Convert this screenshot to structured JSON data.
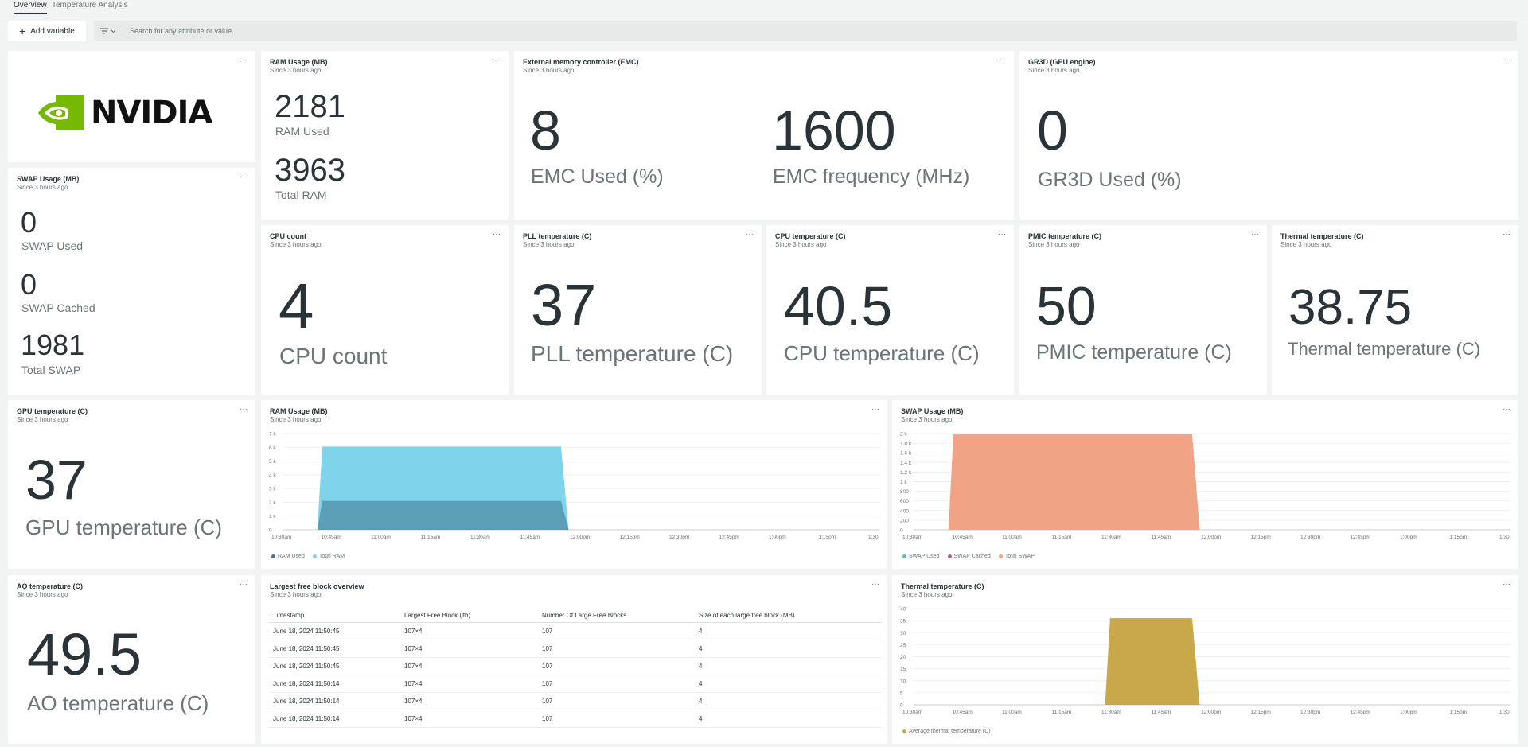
{
  "tabs": [
    {
      "label": "Overview",
      "active": true
    },
    {
      "label": "Temperature Analysis",
      "active": false
    }
  ],
  "toolbar": {
    "add_variable_label": "Add variable",
    "search_placeholder": "Search for any attribute or value."
  },
  "common": {
    "since": "Since 3 hours ago",
    "menu": "···"
  },
  "logo": {
    "text": "NVIDIA",
    "icon": "nvidia-eye-logo",
    "color": "#76b900"
  },
  "ram_usage": {
    "title": "RAM Usage (MB)",
    "used_value": "2181",
    "used_label": "RAM Used",
    "total_value": "3963",
    "total_label": "Total RAM"
  },
  "emc": {
    "title": "External memory controller (EMC)",
    "used_value": "8",
    "used_label": "EMC Used (%)",
    "freq_value": "1600",
    "freq_label": "EMC frequency (MHz)"
  },
  "gr3d": {
    "title": "GR3D (GPU engine)",
    "value": "0",
    "label": "GR3D Used (%)"
  },
  "swap_usage": {
    "title": "SWAP Usage (MB)",
    "used_value": "0",
    "used_label": "SWAP Used",
    "cached_value": "0",
    "cached_label": "SWAP Cached",
    "total_value": "1981",
    "total_label": "Total SWAP"
  },
  "cpu_count": {
    "title": "CPU count",
    "value": "4",
    "label": "CPU count"
  },
  "pll_temp": {
    "title": "PLL temperature (C)",
    "value": "37",
    "label": "PLL temperature (C)"
  },
  "cpu_temp": {
    "title": "CPU temperature (C)",
    "value": "40.5",
    "label": "CPU temperature (C)"
  },
  "pmic_temp": {
    "title": "PMIC temperature (C)",
    "value": "50",
    "label": "PMIC temperature (C)"
  },
  "thermal_temp": {
    "title": "Thermal temperature (C)",
    "value": "38.75",
    "label": "Thermal temperature (C)"
  },
  "gpu_temp": {
    "title": "GPU temperature (C)",
    "value": "37",
    "label": "GPU temperature (C)"
  },
  "ao_temp": {
    "title": "AO temperature (C)",
    "value": "49.5",
    "label": "AO temperature (C)"
  },
  "free_block": {
    "title": "Largest free block overview",
    "columns": [
      "Timestamp",
      "Largest Free Block (lfb)",
      "Number Of Large Free Blocks",
      "Size of each large free block (MB)"
    ],
    "rows": [
      [
        "June 18, 2024 11:50:45",
        "107×4",
        "107",
        "4"
      ],
      [
        "June 18, 2024 11:50:45",
        "107×4",
        "107",
        "4"
      ],
      [
        "June 18, 2024 11:50:45",
        "107×4",
        "107",
        "4"
      ],
      [
        "June 18, 2024 11:50:14",
        "107×4",
        "107",
        "4"
      ],
      [
        "June 18, 2024 11:50:14",
        "107×4",
        "107",
        "4"
      ],
      [
        "June 18, 2024 11:50:14",
        "107×4",
        "107",
        "4"
      ]
    ]
  },
  "chart_data": [
    {
      "id": "ram",
      "type": "area",
      "title": "RAM Usage (MB)",
      "x": [
        "10:30am",
        "10:45am",
        "11:00am",
        "11:15am",
        "11:30am",
        "11:45am",
        "12:00pm",
        "12:15pm",
        "12:30pm",
        "12:45pm",
        "1:00pm",
        "1:15pm",
        "1:30"
      ],
      "xlim": [
        0,
        12
      ],
      "y_ticks": [
        0,
        1000,
        2000,
        3000,
        4000,
        5000,
        6000,
        7000
      ],
      "y_tick_labels": [
        "0",
        "1 k",
        "2 k",
        "3 k",
        "4 k",
        "5 k",
        "6 k",
        "7 k"
      ],
      "ylim": [
        0,
        7000
      ],
      "series": [
        {
          "name": "Total RAM",
          "color": "#7fd3ea",
          "points": [
            [
              0.7,
              0
            ],
            [
              0.8,
              6050
            ],
            [
              5.6,
              6050
            ],
            [
              5.75,
              0
            ]
          ]
        },
        {
          "name": "RAM Used",
          "color": "#5a9fb5",
          "points": [
            [
              0.7,
              0
            ],
            [
              0.8,
              2100
            ],
            [
              5.6,
              2100
            ],
            [
              5.75,
              0
            ]
          ]
        }
      ],
      "legend": [
        {
          "name": "RAM Used",
          "color": "#3d7891"
        },
        {
          "name": "Total RAM",
          "color": "#7fd3ea"
        }
      ]
    },
    {
      "id": "swap",
      "type": "area",
      "title": "SWAP Usage (MB)",
      "x": [
        "10:30am",
        "10:45am",
        "11:00am",
        "11:15am",
        "11:30am",
        "11:45am",
        "12:00pm",
        "12:15pm",
        "12:30pm",
        "12:45pm",
        "1:00pm",
        "1:15pm",
        "1:30"
      ],
      "xlim": [
        0,
        12
      ],
      "y_ticks": [
        0,
        200,
        400,
        600,
        800,
        1000,
        1200,
        1400,
        1600,
        1800,
        2000
      ],
      "y_tick_labels": [
        "0",
        "200",
        "400",
        "600",
        "800",
        "1 k",
        "1.2 k",
        "1.4 k",
        "1.6 k",
        "1.8 k",
        "2 k"
      ],
      "ylim": [
        0,
        2000
      ],
      "series": [
        {
          "name": "Total SWAP",
          "color": "#f0a385",
          "points": [
            [
              0.7,
              0
            ],
            [
              0.8,
              1981
            ],
            [
              5.6,
              1981
            ],
            [
              5.75,
              0
            ]
          ]
        }
      ],
      "legend": [
        {
          "name": "SWAP Used",
          "color": "#5bbfae"
        },
        {
          "name": "SWAP Cached",
          "color": "#c9587d"
        },
        {
          "name": "Total SWAP",
          "color": "#f0a385"
        }
      ]
    },
    {
      "id": "thermal",
      "type": "area",
      "title": "Thermal temperature (C)",
      "x": [
        "10:30am",
        "10:45am",
        "11:00am",
        "11:15am",
        "11:30am",
        "11:45am",
        "12:00pm",
        "12:15pm",
        "12:30pm",
        "12:45pm",
        "1:00pm",
        "1:15pm",
        "1:30"
      ],
      "xlim": [
        0,
        12
      ],
      "y_ticks": [
        0,
        5,
        10,
        15,
        20,
        25,
        30,
        35,
        40
      ],
      "y_tick_labels": [
        "0",
        "5",
        "10",
        "15",
        "20",
        "25",
        "30",
        "35",
        "40"
      ],
      "ylim": [
        0,
        40
      ],
      "series": [
        {
          "name": "Average thermal temperature (C)",
          "color": "#c9a84c",
          "points": [
            [
              3.85,
              0
            ],
            [
              3.95,
              36
            ],
            [
              5.6,
              36
            ],
            [
              5.75,
              0
            ]
          ]
        }
      ],
      "legend": [
        {
          "name": "Average thermal temperature (C)",
          "color": "#c9a84c"
        }
      ]
    }
  ]
}
